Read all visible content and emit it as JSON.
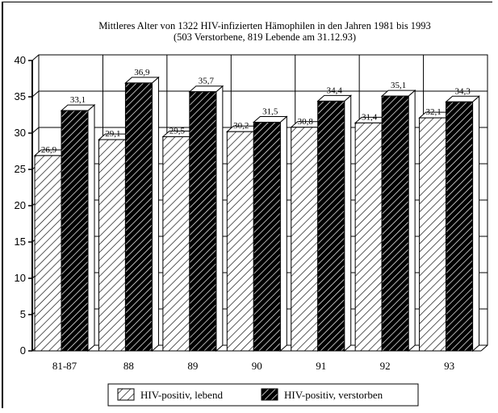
{
  "chart_data": {
    "type": "bar",
    "title_line1": "Mittleres Alter von 1322 HIV-infizierten Hämophilen in den Jahren 1981 bis 1993",
    "title_line2": "(503 Verstorbene, 819 Lebende am 31.12.93)",
    "categories": [
      "81-87",
      "88",
      "89",
      "90",
      "91",
      "92",
      "93"
    ],
    "series": [
      {
        "name": "HIV-positiv, lebend",
        "values": [
          26.9,
          29.1,
          29.5,
          30.2,
          30.8,
          31.4,
          32.1
        ],
        "labels": [
          "26,9",
          "29,1",
          "29,5",
          "30,2",
          "30,8",
          "31,4",
          "32,1"
        ]
      },
      {
        "name": "HIV-positiv, verstorben",
        "values": [
          33.1,
          36.9,
          35.7,
          31.5,
          34.4,
          35.1,
          34.3
        ],
        "labels": [
          "33,1",
          "36,9",
          "35,7",
          "31,5",
          "34,4",
          "35,1",
          "34,3"
        ]
      }
    ],
    "yticks": [
      "0",
      "5",
      "10",
      "15",
      "20",
      "25",
      "30",
      "35",
      "40"
    ],
    "ylim": [
      0,
      40
    ],
    "grid": true,
    "legend_position": "bottom-center"
  }
}
